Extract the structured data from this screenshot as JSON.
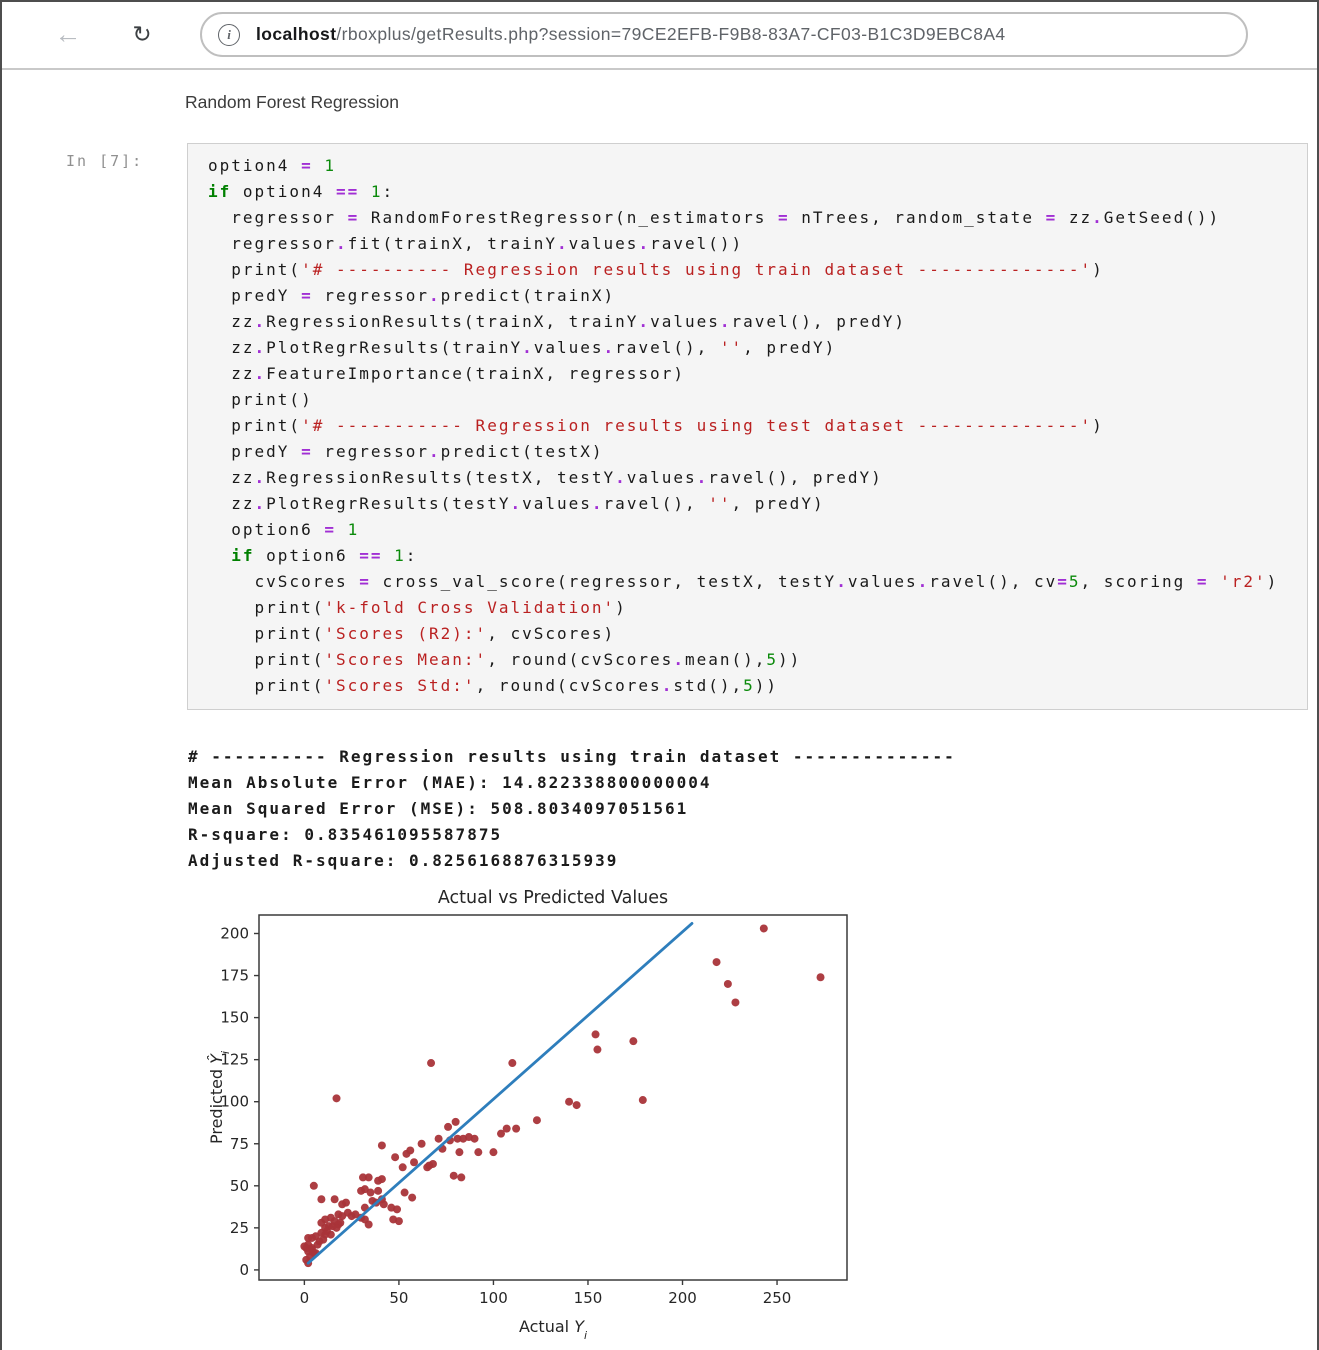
{
  "browser": {
    "back_label": "back",
    "reload_label": "reload",
    "info_label": "i",
    "url_host": "localhost",
    "url_rest": "/rboxplus/getResults.php?session=79CE2EFB-F9B8-83A7-CF03-B1C3D9EBC8A4"
  },
  "notebook": {
    "title": "Random Forest Regression",
    "cell_prompt": "In [7]:",
    "code_lines": [
      [
        [
          "v",
          "option4 "
        ],
        [
          "o",
          "="
        ],
        [
          "v",
          " "
        ],
        [
          "n",
          "1"
        ]
      ],
      [
        [
          "k",
          "if"
        ],
        [
          "v",
          " option4 "
        ],
        [
          "o",
          "=="
        ],
        [
          "v",
          " "
        ],
        [
          "n",
          "1"
        ],
        [
          "v",
          ":"
        ]
      ],
      [
        [
          "v",
          "  regressor "
        ],
        [
          "o",
          "="
        ],
        [
          "v",
          " RandomForestRegressor(n_estimators "
        ],
        [
          "o",
          "="
        ],
        [
          "v",
          " nTrees, random_state "
        ],
        [
          "o",
          "="
        ],
        [
          "v",
          " zz"
        ],
        [
          "o",
          "."
        ],
        [
          "v",
          "GetSeed())"
        ]
      ],
      [
        [
          "v",
          "  regressor"
        ],
        [
          "o",
          "."
        ],
        [
          "v",
          "fit(trainX, trainY"
        ],
        [
          "o",
          "."
        ],
        [
          "v",
          "values"
        ],
        [
          "o",
          "."
        ],
        [
          "v",
          "ravel())"
        ]
      ],
      [
        [
          "v",
          "  print("
        ],
        [
          "s",
          "'# ---------- Regression results using train dataset --------------'"
        ],
        [
          "v",
          ")"
        ]
      ],
      [
        [
          "v",
          "  predY "
        ],
        [
          "o",
          "="
        ],
        [
          "v",
          " regressor"
        ],
        [
          "o",
          "."
        ],
        [
          "v",
          "predict(trainX)"
        ]
      ],
      [
        [
          "v",
          "  zz"
        ],
        [
          "o",
          "."
        ],
        [
          "v",
          "RegressionResults(trainX, trainY"
        ],
        [
          "o",
          "."
        ],
        [
          "v",
          "values"
        ],
        [
          "o",
          "."
        ],
        [
          "v",
          "ravel(), predY)"
        ]
      ],
      [
        [
          "v",
          "  zz"
        ],
        [
          "o",
          "."
        ],
        [
          "v",
          "PlotRegrResults(trainY"
        ],
        [
          "o",
          "."
        ],
        [
          "v",
          "values"
        ],
        [
          "o",
          "."
        ],
        [
          "v",
          "ravel(), "
        ],
        [
          "s",
          "''"
        ],
        [
          "v",
          ", predY)"
        ]
      ],
      [
        [
          "v",
          "  zz"
        ],
        [
          "o",
          "."
        ],
        [
          "v",
          "FeatureImportance(trainX, regressor)"
        ]
      ],
      [
        [
          "v",
          "  print()"
        ]
      ],
      [
        [
          "v",
          "  print("
        ],
        [
          "s",
          "'# ----------- Regression results using test dataset --------------'"
        ],
        [
          "v",
          ")"
        ]
      ],
      [
        [
          "v",
          "  predY "
        ],
        [
          "o",
          "="
        ],
        [
          "v",
          " regressor"
        ],
        [
          "o",
          "."
        ],
        [
          "v",
          "predict(testX)"
        ]
      ],
      [
        [
          "v",
          "  zz"
        ],
        [
          "o",
          "."
        ],
        [
          "v",
          "RegressionResults(testX, testY"
        ],
        [
          "o",
          "."
        ],
        [
          "v",
          "values"
        ],
        [
          "o",
          "."
        ],
        [
          "v",
          "ravel(), predY)"
        ]
      ],
      [
        [
          "v",
          "  zz"
        ],
        [
          "o",
          "."
        ],
        [
          "v",
          "PlotRegrResults(testY"
        ],
        [
          "o",
          "."
        ],
        [
          "v",
          "values"
        ],
        [
          "o",
          "."
        ],
        [
          "v",
          "ravel(), "
        ],
        [
          "s",
          "''"
        ],
        [
          "v",
          ", predY)"
        ]
      ],
      [
        [
          "v",
          "  option6 "
        ],
        [
          "o",
          "="
        ],
        [
          "v",
          " "
        ],
        [
          "n",
          "1"
        ]
      ],
      [
        [
          "v",
          "  "
        ],
        [
          "k",
          "if"
        ],
        [
          "v",
          " option6 "
        ],
        [
          "o",
          "=="
        ],
        [
          "v",
          " "
        ],
        [
          "n",
          "1"
        ],
        [
          "v",
          ":"
        ]
      ],
      [
        [
          "v",
          "    cvScores "
        ],
        [
          "o",
          "="
        ],
        [
          "v",
          " cross_val_score(regressor, testX, testY"
        ],
        [
          "o",
          "."
        ],
        [
          "v",
          "values"
        ],
        [
          "o",
          "."
        ],
        [
          "v",
          "ravel(), cv"
        ],
        [
          "o",
          "="
        ],
        [
          "n",
          "5"
        ],
        [
          "v",
          ", scoring "
        ],
        [
          "o",
          "="
        ],
        [
          "v",
          " "
        ],
        [
          "s",
          "'r2'"
        ],
        [
          "v",
          ")"
        ]
      ],
      [
        [
          "v",
          "    print("
        ],
        [
          "s",
          "'k-fold Cross Validation'"
        ],
        [
          "v",
          ")"
        ]
      ],
      [
        [
          "v",
          "    print("
        ],
        [
          "s",
          "'Scores (R2):'"
        ],
        [
          "v",
          ", cvScores)"
        ]
      ],
      [
        [
          "v",
          "    print("
        ],
        [
          "s",
          "'Scores Mean:'"
        ],
        [
          "v",
          ", round(cvScores"
        ],
        [
          "o",
          "."
        ],
        [
          "v",
          "mean(),"
        ],
        [
          "n",
          "5"
        ],
        [
          "v",
          "))"
        ]
      ],
      [
        [
          "v",
          "    print("
        ],
        [
          "s",
          "'Scores Std:'"
        ],
        [
          "v",
          ", round(cvScores"
        ],
        [
          "o",
          "."
        ],
        [
          "v",
          "std(),"
        ],
        [
          "n",
          "5"
        ],
        [
          "v",
          "))"
        ]
      ]
    ],
    "output_lines": [
      "# ---------- Regression results using train dataset --------------",
      "Mean Absolute Error (MAE): 14.822338800000004",
      "Mean Squared Error (MSE): 508.8034097051561",
      "R-square: 0.835461095587875",
      "Adjusted R-square: 0.8256168876315939"
    ]
  },
  "chart_data": {
    "type": "scatter",
    "title": "Actual vs Predicted Values",
    "xlabel": {
      "text": "Actual",
      "var": "Y",
      "sub": "i"
    },
    "ylabel": {
      "text": "Predicted",
      "var": "Ŷ",
      "sub": "i"
    },
    "xlim": [
      -24,
      287
    ],
    "ylim": [
      -6,
      211
    ],
    "xticks": [
      0,
      50,
      100,
      150,
      200,
      250
    ],
    "yticks": [
      0,
      25,
      50,
      75,
      100,
      125,
      150,
      175,
      200
    ],
    "grid": false,
    "legend": "none",
    "identity_line": {
      "x1": 2,
      "y1": 4,
      "x2": 205,
      "y2": 206
    },
    "point_color": "#a93439",
    "line_color": "#2e7ebc",
    "points": [
      [
        243,
        203
      ],
      [
        218,
        183
      ],
      [
        224,
        170
      ],
      [
        228,
        159
      ],
      [
        273,
        174
      ],
      [
        154,
        140
      ],
      [
        155,
        131
      ],
      [
        174,
        136
      ],
      [
        140,
        100
      ],
      [
        144,
        98
      ],
      [
        179,
        101
      ],
      [
        110,
        123
      ],
      [
        67,
        123
      ],
      [
        17,
        102
      ],
      [
        123,
        89
      ],
      [
        104,
        81
      ],
      [
        107,
        84
      ],
      [
        112,
        84
      ],
      [
        100,
        70
      ],
      [
        92,
        70
      ],
      [
        82,
        70
      ],
      [
        90,
        78
      ],
      [
        87,
        79
      ],
      [
        84,
        78
      ],
      [
        81,
        78
      ],
      [
        77,
        77
      ],
      [
        80,
        88
      ],
      [
        76,
        85
      ],
      [
        71,
        78
      ],
      [
        73,
        72
      ],
      [
        62,
        75
      ],
      [
        79,
        56
      ],
      [
        83,
        55
      ],
      [
        68,
        63
      ],
      [
        65,
        61
      ],
      [
        66,
        62
      ],
      [
        58,
        64
      ],
      [
        52,
        61
      ],
      [
        48,
        67
      ],
      [
        54,
        69
      ],
      [
        56,
        71
      ],
      [
        41,
        74
      ],
      [
        41,
        54
      ],
      [
        39,
        53
      ],
      [
        34,
        55
      ],
      [
        31,
        55
      ],
      [
        35,
        46
      ],
      [
        39,
        47
      ],
      [
        53,
        46
      ],
      [
        57,
        43
      ],
      [
        42,
        39
      ],
      [
        46,
        37
      ],
      [
        49,
        36
      ],
      [
        32,
        37
      ],
      [
        47,
        30
      ],
      [
        50,
        29
      ],
      [
        36,
        41
      ],
      [
        38,
        40
      ],
      [
        41,
        42
      ],
      [
        30,
        47
      ],
      [
        32,
        48
      ],
      [
        5,
        50
      ],
      [
        9,
        42
      ],
      [
        16,
        42
      ],
      [
        20,
        39
      ],
      [
        22,
        40
      ],
      [
        18,
        33
      ],
      [
        23,
        34
      ],
      [
        25,
        32
      ],
      [
        27,
        33
      ],
      [
        30,
        31
      ],
      [
        32,
        30
      ],
      [
        20,
        32
      ],
      [
        14,
        31
      ],
      [
        11,
        30
      ],
      [
        16,
        29
      ],
      [
        19,
        28
      ],
      [
        34,
        27
      ],
      [
        9,
        28
      ],
      [
        11,
        25
      ],
      [
        13,
        26
      ],
      [
        15,
        26
      ],
      [
        18,
        27
      ],
      [
        17,
        25
      ],
      [
        12,
        23
      ],
      [
        14,
        21
      ],
      [
        9,
        22
      ],
      [
        11,
        21
      ],
      [
        6,
        20
      ],
      [
        4,
        19
      ],
      [
        2,
        19
      ],
      [
        8,
        17
      ],
      [
        10,
        18
      ],
      [
        0,
        14
      ],
      [
        2,
        15
      ],
      [
        4,
        13
      ],
      [
        7,
        15
      ],
      [
        1,
        13
      ],
      [
        2,
        11
      ],
      [
        4,
        12
      ],
      [
        3,
        8
      ],
      [
        1,
        6
      ],
      [
        2,
        4
      ],
      [
        5,
        10
      ],
      [
        6,
        10
      ]
    ]
  }
}
